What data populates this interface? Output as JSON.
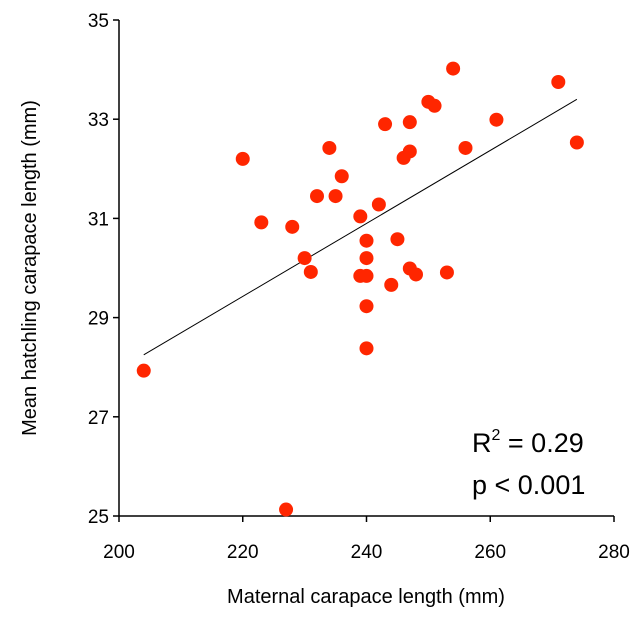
{
  "chart_data": {
    "type": "scatter",
    "title": "",
    "xlabel": "Maternal carapace length (mm)",
    "ylabel": "Mean hatchling carapace length (mm)",
    "xlim": [
      200,
      280
    ],
    "ylim": [
      25,
      35
    ],
    "xticks": [
      "200",
      "220",
      "240",
      "260",
      "280"
    ],
    "yticks": [
      "25",
      "27",
      "29",
      "31",
      "33",
      "35"
    ],
    "grid": false,
    "legend": "none",
    "marker_color": "#ff2600",
    "trendline_color": "#000000",
    "trendline": {
      "x": [
        204,
        274
      ],
      "y": [
        28.25,
        33.4
      ]
    },
    "annotation": {
      "r2_label": "R",
      "r2_sup": "2",
      "r2_value": " = 0.29",
      "p_text": "p < 0.001"
    },
    "points": [
      {
        "x": 204,
        "y": 27.93
      },
      {
        "x": 220,
        "y": 32.2
      },
      {
        "x": 223,
        "y": 30.92
      },
      {
        "x": 227,
        "y": 25.13
      },
      {
        "x": 228,
        "y": 30.83
      },
      {
        "x": 230,
        "y": 30.2
      },
      {
        "x": 231,
        "y": 29.92
      },
      {
        "x": 232,
        "y": 31.45
      },
      {
        "x": 234,
        "y": 32.42
      },
      {
        "x": 235,
        "y": 31.45
      },
      {
        "x": 236,
        "y": 31.85
      },
      {
        "x": 239,
        "y": 31.04
      },
      {
        "x": 239,
        "y": 29.84
      },
      {
        "x": 240,
        "y": 29.84
      },
      {
        "x": 240,
        "y": 30.55
      },
      {
        "x": 240,
        "y": 30.2
      },
      {
        "x": 240,
        "y": 29.23
      },
      {
        "x": 240,
        "y": 28.38
      },
      {
        "x": 242,
        "y": 31.28
      },
      {
        "x": 243,
        "y": 32.9
      },
      {
        "x": 244,
        "y": 29.66
      },
      {
        "x": 245,
        "y": 30.58
      },
      {
        "x": 246,
        "y": 32.22
      },
      {
        "x": 247,
        "y": 32.35
      },
      {
        "x": 247,
        "y": 32.94
      },
      {
        "x": 247,
        "y": 29.99
      },
      {
        "x": 248,
        "y": 29.87
      },
      {
        "x": 250,
        "y": 33.35
      },
      {
        "x": 251,
        "y": 33.27
      },
      {
        "x": 253,
        "y": 29.91
      },
      {
        "x": 254,
        "y": 34.02
      },
      {
        "x": 256,
        "y": 32.42
      },
      {
        "x": 261,
        "y": 32.99
      },
      {
        "x": 271,
        "y": 33.75
      },
      {
        "x": 274,
        "y": 32.53
      }
    ]
  }
}
